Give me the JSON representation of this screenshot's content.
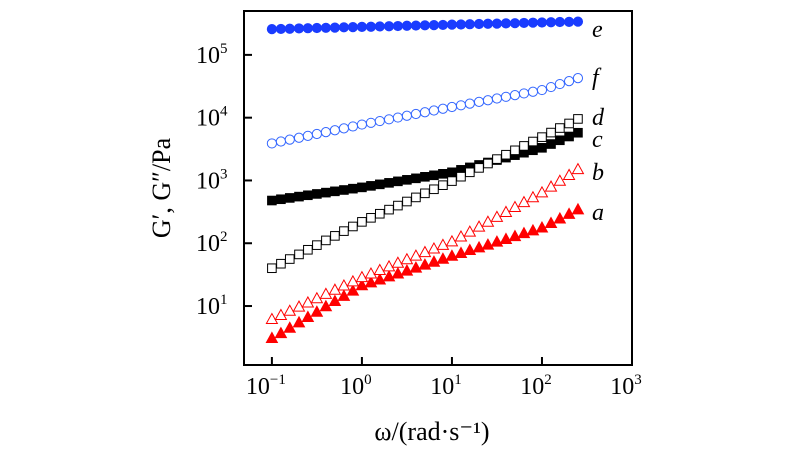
{
  "chart_data": {
    "type": "scatter",
    "xlabel": "ω/(rad·s⁻¹)",
    "ylabel": "G′, G″/Pa",
    "xscale": "log",
    "yscale": "log",
    "xlim": [
      0.049,
      1000
    ],
    "ylim": [
      1.15,
      500000
    ],
    "xticks": [
      0.1,
      1,
      10,
      100,
      1000
    ],
    "xtick_labels": [
      [
        "10",
        "−1"
      ],
      [
        "10",
        "0"
      ],
      [
        "10",
        "1"
      ],
      [
        "10",
        "2"
      ],
      [
        "10",
        "3"
      ]
    ],
    "yticks": [
      10,
      100,
      1000,
      10000,
      100000
    ],
    "ytick_labels": [
      [
        "10",
        "1"
      ],
      [
        "10",
        "2"
      ],
      [
        "10",
        "3"
      ],
      [
        "10",
        "4"
      ],
      [
        "10",
        "5"
      ]
    ],
    "grid": false,
    "legend": "curve labels at right end",
    "x": [
      0.1,
      0.126,
      0.158,
      0.2,
      0.251,
      0.316,
      0.398,
      0.501,
      0.631,
      0.794,
      1,
      1.26,
      1.58,
      2,
      2.51,
      3.16,
      3.98,
      5.01,
      6.31,
      7.94,
      10,
      12.6,
      15.8,
      20,
      25.1,
      31.6,
      39.8,
      50.1,
      63.1,
      79.4,
      100,
      126,
      158,
      200,
      251
    ],
    "series": [
      {
        "name": "a",
        "marker": "triangle-filled",
        "color": "#ff0000",
        "values": [
          3.1,
          3.7,
          4.5,
          5.5,
          6.7,
          8.1,
          9.9,
          12,
          14.5,
          17.6,
          21.4,
          23.8,
          26.5,
          29.6,
          33,
          36.7,
          40.9,
          45.6,
          50.8,
          56.6,
          63.1,
          70,
          78,
          86,
          95,
          106,
          117,
          130,
          145,
          160,
          178,
          210,
          248,
          293,
          347
        ]
      },
      {
        "name": "b",
        "marker": "triangle-open",
        "color": "#ff0000",
        "values": [
          6.2,
          7.2,
          8.4,
          9.8,
          11.4,
          13.3,
          15.6,
          18.2,
          21.2,
          24.7,
          28.8,
          32.9,
          37.5,
          42.8,
          48.8,
          55.6,
          63.4,
          72.3,
          82.4,
          94,
          107,
          128,
          153,
          184,
          220,
          263,
          315,
          377,
          451,
          540,
          646,
          799,
          989,
          1223,
          1514
        ]
      },
      {
        "name": "c",
        "marker": "square-filled",
        "color": "#000000",
        "values": [
          479,
          502,
          527,
          553,
          581,
          610,
          640,
          671,
          705,
          740,
          776,
          820,
          867,
          916,
          968,
          1023,
          1081,
          1143,
          1208,
          1276,
          1349,
          1476,
          1614,
          1766,
          1932,
          2113,
          2312,
          2529,
          2767,
          3027,
          3311,
          3802,
          4365,
          5012,
          5754
        ]
      },
      {
        "name": "d",
        "marker": "square-open",
        "color": "#000000",
        "values": [
          40,
          47.2,
          56,
          66.4,
          78.7,
          93.3,
          111,
          131,
          156,
          185,
          219,
          254,
          295,
          343,
          398,
          462,
          537,
          624,
          724,
          841,
          977,
          1148,
          1349,
          1585,
          1862,
          2188,
          2570,
          3020,
          3548,
          4169,
          4898,
          5788,
          6839,
          8081,
          9550
        ]
      },
      {
        "name": "e",
        "marker": "circle-filled",
        "color": "#1a3cff",
        "values": [
          257000,
          259000,
          261000,
          264000,
          266000,
          268000,
          270000,
          272000,
          275000,
          277000,
          279000,
          281000,
          284000,
          286000,
          288000,
          291000,
          293000,
          296000,
          298000,
          300000,
          303000,
          305000,
          308000,
          310000,
          313000,
          315000,
          318000,
          320000,
          323000,
          326000,
          328000,
          331000,
          334000,
          336000,
          339000
        ]
      },
      {
        "name": "f",
        "marker": "circle-open",
        "color": "#3366ff",
        "values": [
          3890,
          4169,
          4467,
          4786,
          5129,
          5495,
          5888,
          6310,
          6761,
          7244,
          7762,
          8279,
          8831,
          9419,
          10046,
          10715,
          11429,
          12190,
          13002,
          13868,
          14791,
          15740,
          16749,
          17824,
          18967,
          20184,
          21478,
          22856,
          24322,
          25882,
          27542,
          30726,
          34277,
          38238,
          42658
        ]
      }
    ]
  }
}
